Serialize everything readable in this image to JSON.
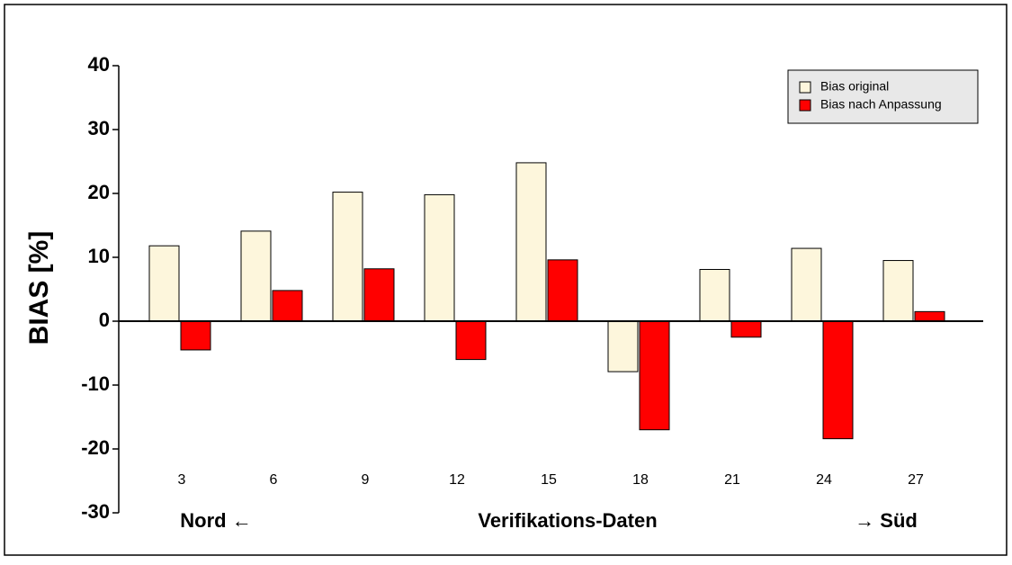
{
  "chart_data": {
    "type": "bar",
    "ylabel": "BIAS [%]",
    "xlabel": "Verifikations-Daten",
    "annotations": [
      "Nord ←",
      "→ Süd"
    ],
    "categories": [
      "3",
      "6",
      "9",
      "12",
      "15",
      "18",
      "21",
      "24",
      "27"
    ],
    "series": [
      {
        "name": "Bias original",
        "color": "#fdf6dc",
        "values": [
          11.8,
          14.1,
          20.2,
          19.8,
          24.8,
          -7.9,
          8.1,
          11.4,
          9.5
        ]
      },
      {
        "name": "Bias nach Anpassung",
        "color": "#ff0000",
        "values": [
          -4.5,
          4.8,
          8.2,
          -6.0,
          9.6,
          -17.0,
          -2.5,
          -18.4,
          1.5
        ]
      }
    ],
    "ylim": [
      -30,
      40
    ],
    "yticks": [
      -30,
      -20,
      -10,
      0,
      10,
      20,
      30,
      40
    ],
    "legend": "top-right"
  }
}
